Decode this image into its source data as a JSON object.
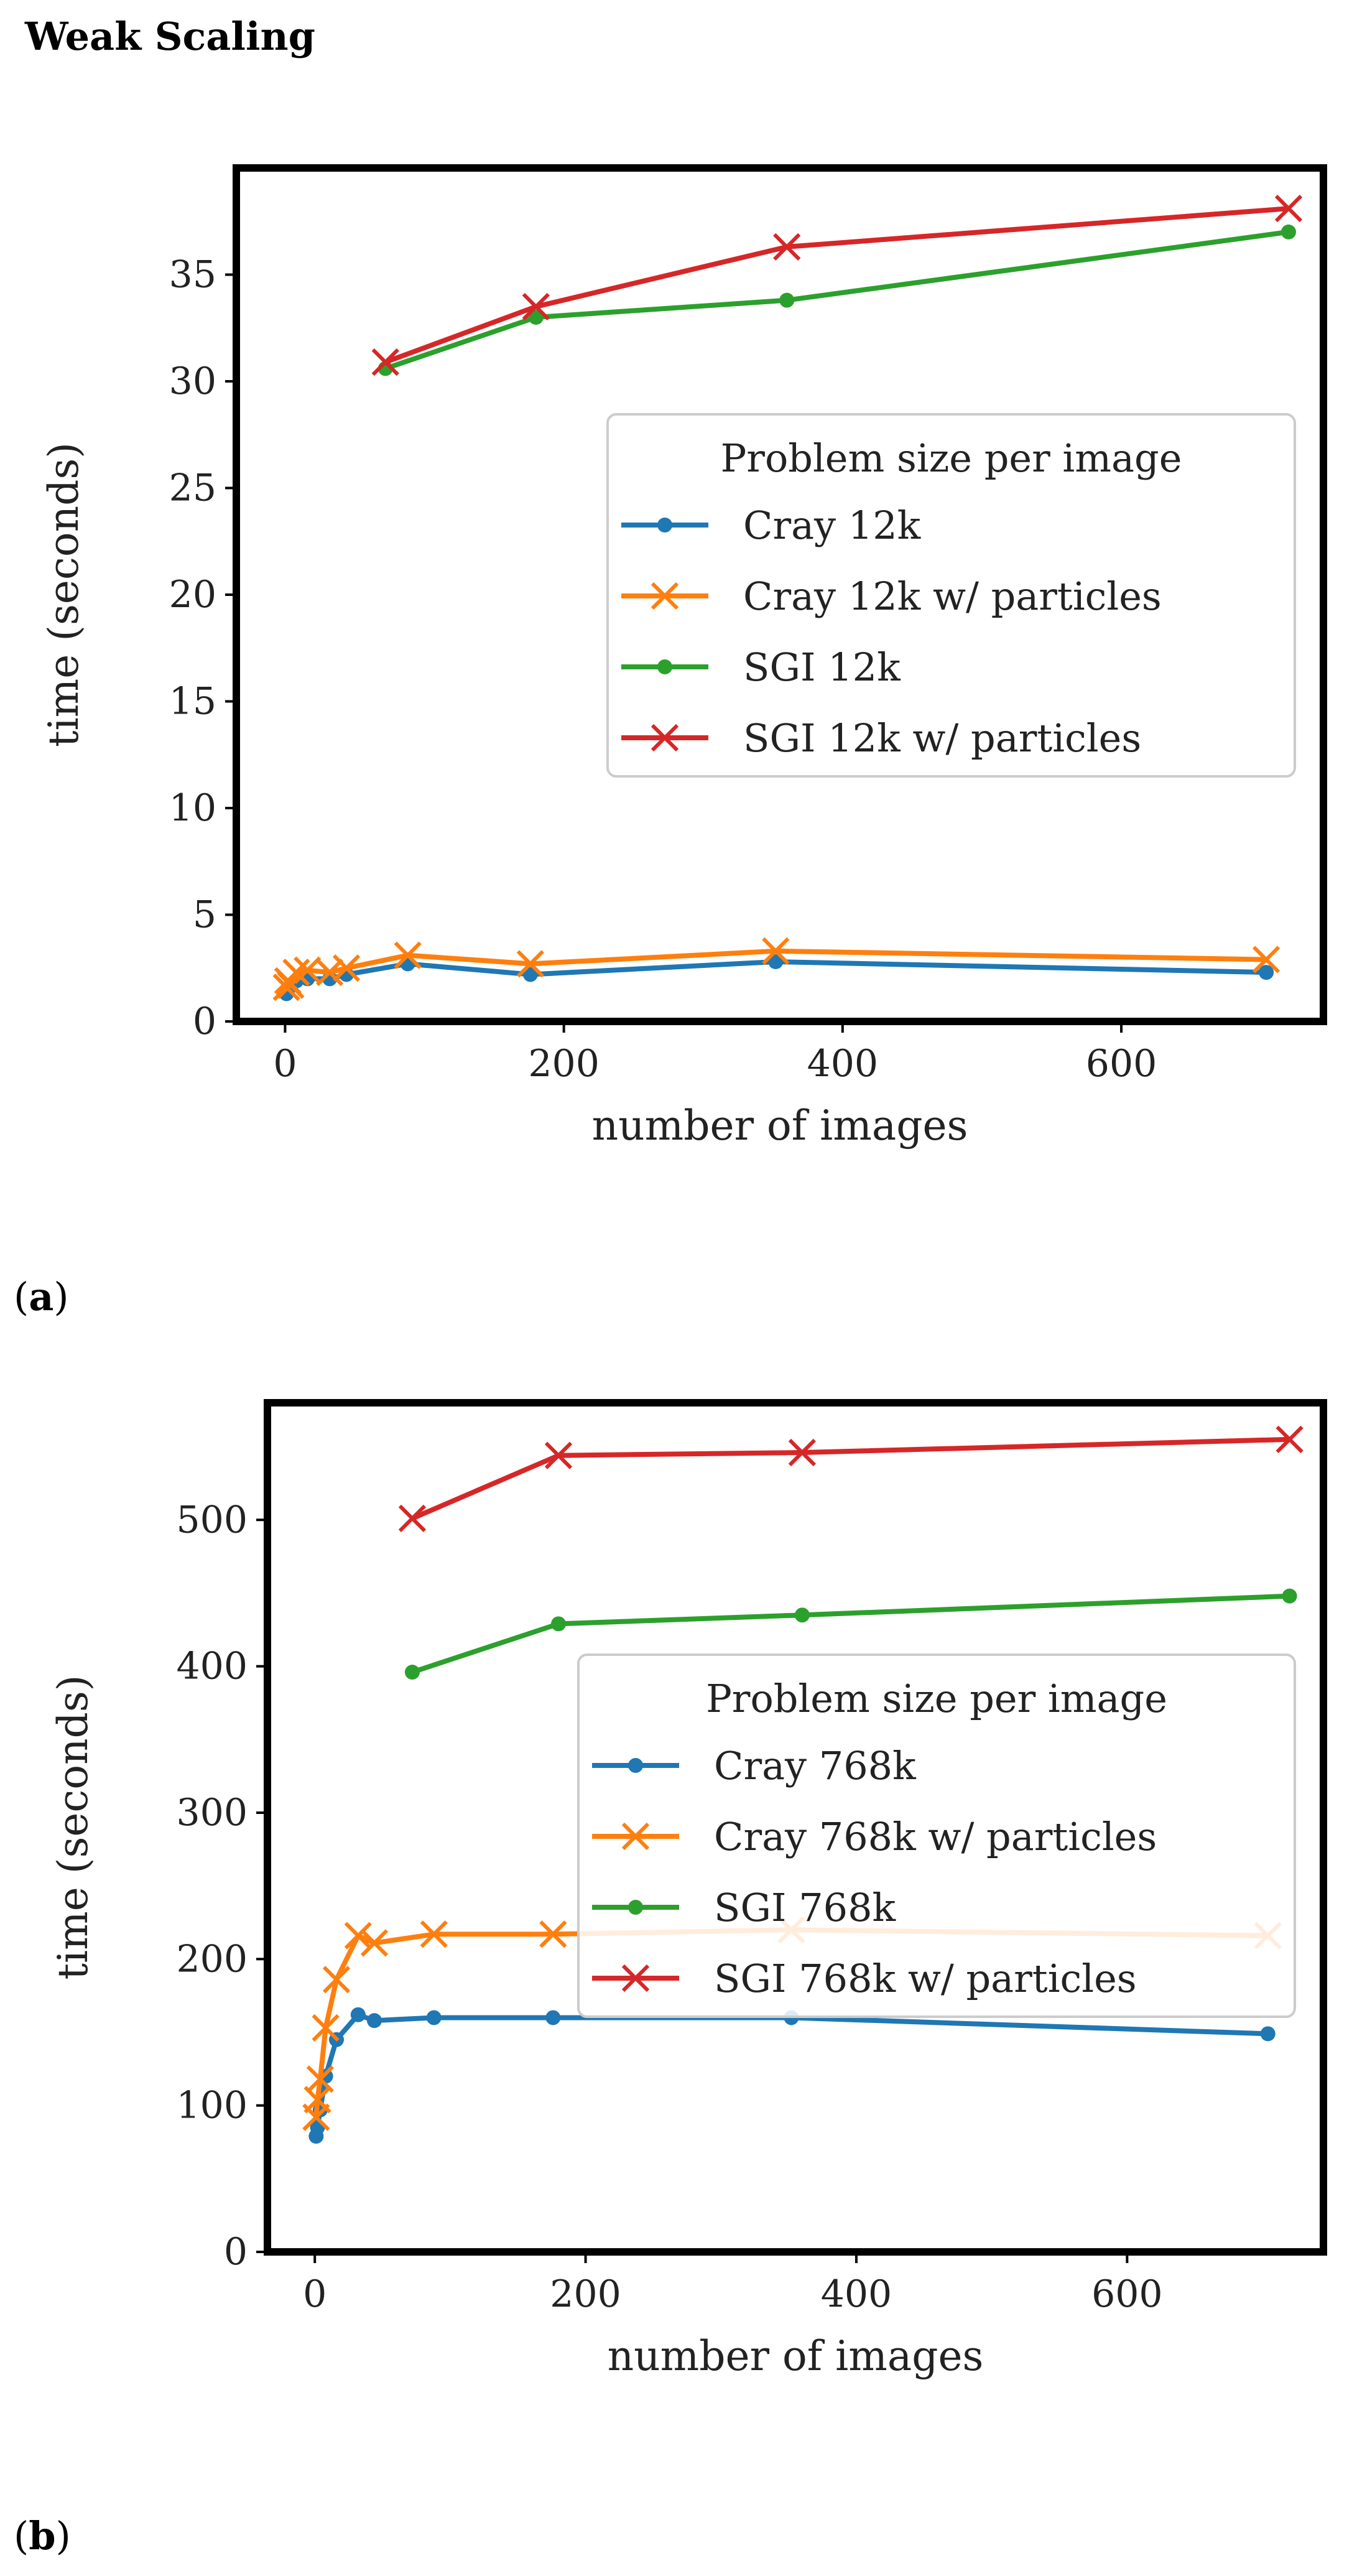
{
  "page": {
    "title": "Weak Scaling"
  },
  "captions": [
    {
      "label": "a"
    },
    {
      "label": "b"
    }
  ],
  "chart_data": [
    {
      "type": "line",
      "xlabel": "number of images",
      "ylabel": "time (seconds)",
      "xlim": [
        -35,
        745
      ],
      "ylim": [
        0,
        40
      ],
      "xticks": [
        0,
        200,
        400,
        600
      ],
      "yticks": [
        0,
        5,
        10,
        15,
        20,
        25,
        30,
        35
      ],
      "grid": false,
      "legend": {
        "title": "Problem size per image",
        "position": "center-right"
      },
      "series": [
        {
          "name": "Cray 12k",
          "color": "#1f77b4",
          "marker": "dot",
          "x": [
            1,
            2,
            4,
            8,
            16,
            32,
            44,
            88,
            176,
            352,
            704
          ],
          "y": [
            1.3,
            1.5,
            1.7,
            1.9,
            2.0,
            2.0,
            2.2,
            2.7,
            2.2,
            2.8,
            2.3
          ]
        },
        {
          "name": "Cray 12k  w/ particles",
          "color": "#ff7f0e",
          "marker": "x",
          "x": [
            1,
            2,
            4,
            8,
            16,
            32,
            44,
            88,
            176,
            352,
            704
          ],
          "y": [
            1.6,
            1.9,
            1.7,
            2.3,
            2.4,
            2.3,
            2.5,
            3.1,
            2.7,
            3.3,
            2.9
          ]
        },
        {
          "name": "SGI 12k",
          "color": "#2ca02c",
          "marker": "dot",
          "x": [
            72,
            180,
            360,
            720
          ],
          "y": [
            30.6,
            33.0,
            33.8,
            37.0
          ]
        },
        {
          "name": "SGI 12k  w/ particles",
          "color": "#d62728",
          "marker": "x",
          "x": [
            72,
            180,
            360,
            720
          ],
          "y": [
            30.9,
            33.5,
            36.3,
            38.1
          ]
        }
      ]
    },
    {
      "type": "line",
      "xlabel": "number of images",
      "ylabel": "time (seconds)",
      "xlim": [
        -35,
        745
      ],
      "ylim": [
        0,
        580
      ],
      "xticks": [
        0,
        200,
        400,
        600
      ],
      "yticks": [
        0,
        100,
        200,
        300,
        400,
        500
      ],
      "grid": false,
      "legend": {
        "title": "Problem size per image",
        "position": "center-right"
      },
      "series": [
        {
          "name": "Cray 768k",
          "color": "#1f77b4",
          "marker": "dot",
          "x": [
            1,
            2,
            4,
            8,
            16,
            32,
            44,
            88,
            176,
            352,
            704
          ],
          "y": [
            79,
            85,
            97,
            120,
            145,
            162,
            158,
            160,
            160,
            160,
            149
          ]
        },
        {
          "name": "Cray 768k  w/ particles",
          "color": "#ff7f0e",
          "marker": "x",
          "x": [
            1,
            2,
            4,
            8,
            16,
            32,
            44,
            88,
            176,
            352,
            704
          ],
          "y": [
            92,
            104,
            118,
            153,
            186,
            216,
            211,
            217,
            217,
            220,
            216
          ]
        },
        {
          "name": "SGI 768k",
          "color": "#2ca02c",
          "marker": "dot",
          "x": [
            72,
            180,
            360,
            720
          ],
          "y": [
            396,
            429,
            435,
            448
          ]
        },
        {
          "name": "SGI 768k  w/ particles",
          "color": "#d62728",
          "marker": "x",
          "x": [
            72,
            180,
            360,
            720
          ],
          "y": [
            501,
            544,
            546,
            555
          ]
        }
      ]
    }
  ]
}
